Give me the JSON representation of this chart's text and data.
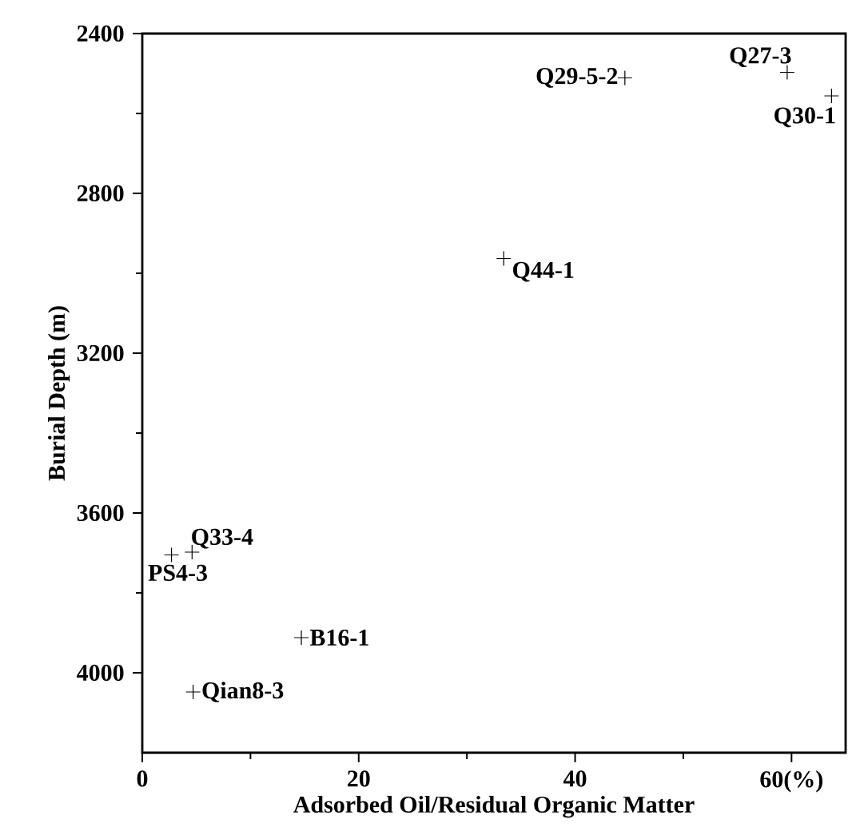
{
  "chart_data": {
    "type": "scatter",
    "xlabel": "Adsorbed Oil/Residual Organic Matter",
    "ylabel": "Burial Depth (m)",
    "x": [
      44.6,
      59.6,
      63.7,
      33.4,
      4.6,
      2.7,
      14.7,
      4.7
    ],
    "series": [
      {
        "color": "#000000",
        "values": [
          2511,
          2497,
          2556,
          2963,
          3698,
          3705,
          3912,
          4048
        ]
      }
    ],
    "xlim": [
      0,
      65
    ],
    "ylim": [
      4200,
      2400
    ],
    "xticks": [
      0,
      20,
      40,
      {
        "value": 60,
        "label": "60(%)"
      }
    ],
    "yticks": [
      2400,
      2800,
      3200,
      3600,
      4000
    ],
    "marker": "cross",
    "annotations": [
      {
        "text": "Q29-5-2",
        "x": 44.6,
        "y": 2511
      },
      {
        "text": "Q27-3",
        "x": 59.6,
        "y": 2497
      },
      {
        "text": "Q30-1",
        "x": 63.7,
        "y": 2556
      },
      {
        "text": "Q44-1",
        "x": 33.4,
        "y": 2963
      },
      {
        "text": "Q33-4",
        "x": 4.6,
        "y": 3698
      },
      {
        "text": "PS4-3",
        "x": 2.7,
        "y": 3705
      },
      {
        "text": "B16-1",
        "x": 14.7,
        "y": 3912
      },
      {
        "text": "Qian8-3",
        "x": 4.7,
        "y": 4048
      }
    ]
  }
}
